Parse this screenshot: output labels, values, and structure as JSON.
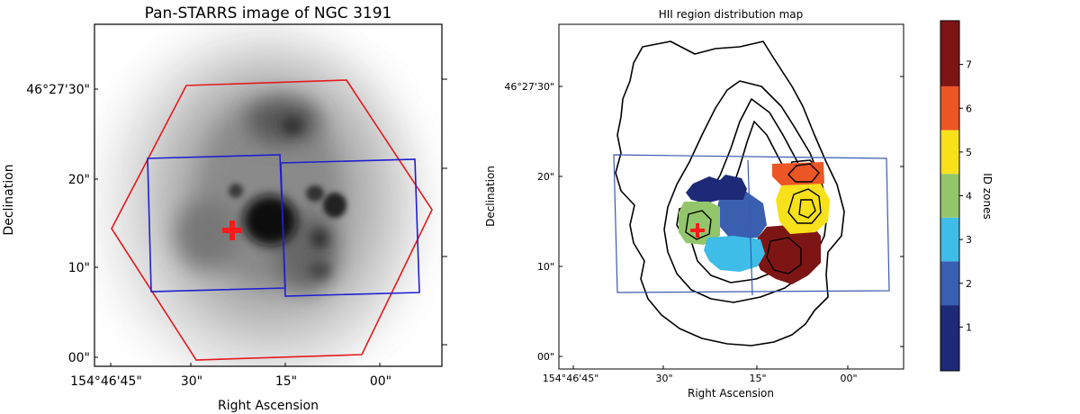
{
  "chart_data": [
    {
      "type": "image",
      "title": "Pan-STARRS image of NGC 3191",
      "xlabel": "Right Ascension",
      "ylabel": "Declination",
      "x_ticks": [
        "154°46'45\"",
        "30\"",
        "15\"",
        "00\""
      ],
      "y_ticks": [
        "46°27'30\"",
        "20\"",
        "10\"",
        "00\""
      ],
      "overlays": [
        {
          "shape": "hexagon",
          "color": "#e41a1c"
        },
        {
          "shape": "rectangle",
          "color": "#1f1fd0"
        },
        {
          "shape": "rectangle",
          "color": "#1f1fd0"
        },
        {
          "shape": "cross-marker",
          "color": "#ff1a1a"
        }
      ]
    },
    {
      "type": "heatmap",
      "title": "HII region distribution map",
      "xlabel": "Right Ascension",
      "ylabel": "Declination",
      "x_ticks": [
        "154°46'45\"",
        "30\"",
        "15\"",
        "00\""
      ],
      "y_ticks": [
        "46°27'30\"",
        "20\"",
        "10\"",
        "00\""
      ],
      "colorbar": {
        "label": "ID zones",
        "range": [
          0,
          8
        ],
        "ticks": [
          "1",
          "2",
          "3",
          "4",
          "5",
          "6",
          "7"
        ],
        "colors": [
          "#1e2a78",
          "#3a5fb0",
          "#3ebde8",
          "#93c66b",
          "#f7e11a",
          "#ec5524",
          "#7e1515"
        ]
      },
      "zones": [
        {
          "id": 1,
          "color": "#1e2a78"
        },
        {
          "id": 2,
          "color": "#3a5fb0"
        },
        {
          "id": 3,
          "color": "#3ebde8"
        },
        {
          "id": 4,
          "color": "#93c66b"
        },
        {
          "id": 5,
          "color": "#f7e11a"
        },
        {
          "id": 6,
          "color": "#ec5524"
        },
        {
          "id": 7,
          "color": "#7e1515"
        }
      ]
    }
  ]
}
